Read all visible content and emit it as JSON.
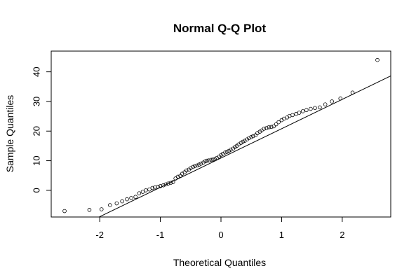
{
  "chart_data": {
    "type": "scatter",
    "title": "Normal Q-Q Plot",
    "xlabel": "Theoretical Quantiles",
    "ylabel": "Sample Quantiles",
    "xlim": [
      -2.8,
      2.8
    ],
    "ylim": [
      -9,
      47
    ],
    "xticks": [
      "-2",
      "-1",
      "0",
      "1",
      "2"
    ],
    "yticks": [
      "0",
      "10",
      "20",
      "30",
      "40"
    ],
    "grid": false,
    "reference_line": {
      "intercept": 10.9,
      "slope": 9.9
    },
    "points": {
      "x": [
        -2.58,
        -2.17,
        -1.97,
        -1.83,
        -1.72,
        -1.63,
        -1.55,
        -1.48,
        -1.41,
        -1.35,
        -1.29,
        -1.24,
        -1.18,
        -1.13,
        -1.09,
        -1.04,
        -1.0,
        -0.95,
        -0.91,
        -0.87,
        -0.83,
        -0.79,
        -0.75,
        -0.71,
        -0.67,
        -0.64,
        -0.6,
        -0.57,
        -0.53,
        -0.5,
        -0.46,
        -0.43,
        -0.39,
        -0.36,
        -0.33,
        -0.29,
        -0.26,
        -0.23,
        -0.2,
        -0.16,
        -0.13,
        -0.1,
        -0.07,
        -0.03,
        0.0,
        0.03,
        0.07,
        0.1,
        0.13,
        0.16,
        0.2,
        0.23,
        0.26,
        0.29,
        0.33,
        0.36,
        0.39,
        0.43,
        0.46,
        0.5,
        0.53,
        0.57,
        0.6,
        0.64,
        0.67,
        0.71,
        0.75,
        0.79,
        0.83,
        0.87,
        0.91,
        0.95,
        1.0,
        1.04,
        1.09,
        1.13,
        1.18,
        1.24,
        1.29,
        1.35,
        1.41,
        1.48,
        1.55,
        1.63,
        1.72,
        1.83,
        1.97,
        2.17,
        2.58
      ],
      "y": [
        -7.0,
        -6.6,
        -6.4,
        -5.0,
        -4.4,
        -3.7,
        -3.0,
        -2.6,
        -2.2,
        -1.0,
        -0.5,
        0.0,
        0.3,
        0.8,
        1.0,
        1.2,
        1.4,
        1.7,
        2.0,
        2.3,
        2.5,
        2.8,
        4.0,
        4.6,
        4.9,
        5.6,
        6.1,
        6.7,
        7.0,
        7.5,
        7.9,
        8.2,
        8.4,
        8.7,
        9.0,
        9.4,
        9.8,
        10.0,
        10.1,
        10.3,
        10.4,
        10.5,
        10.9,
        11.4,
        11.9,
        12.3,
        12.8,
        13.0,
        13.3,
        13.7,
        14.1,
        14.6,
        15.0,
        15.5,
        16.0,
        16.4,
        16.7,
        17.2,
        17.6,
        18.0,
        18.3,
        18.6,
        19.3,
        19.8,
        20.2,
        20.8,
        21.0,
        21.3,
        21.4,
        21.6,
        22.3,
        23.0,
        23.7,
        24.2,
        24.6,
        25.1,
        25.4,
        25.8,
        26.2,
        26.7,
        27.1,
        27.5,
        27.8,
        28.0,
        29.0,
        30.0,
        31.0,
        33.0,
        44.0
      ]
    }
  }
}
